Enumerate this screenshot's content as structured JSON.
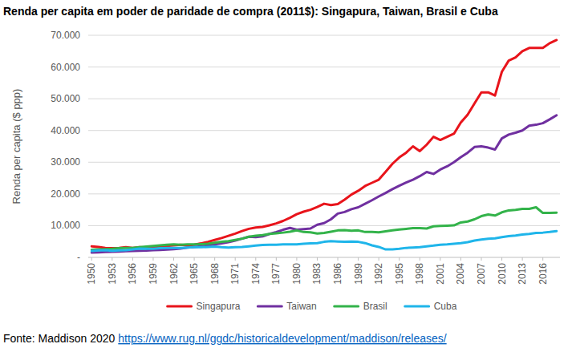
{
  "chart_data": {
    "type": "line",
    "title": "Renda per capita em poder de paridade de compra (2011$): Singapura, Taiwan, Brasil e Cuba",
    "y_label": "Renda per capita ($ ppp)",
    "source": "Fonte: Maddison 2020",
    "source_link": "https://www.rug.nl/ggdc/historicaldevelopment/maddison/releases/",
    "x": [
      1950,
      1951,
      1952,
      1953,
      1954,
      1955,
      1956,
      1957,
      1958,
      1959,
      1960,
      1961,
      1962,
      1963,
      1964,
      1965,
      1966,
      1967,
      1968,
      1969,
      1970,
      1971,
      1972,
      1973,
      1974,
      1975,
      1976,
      1977,
      1978,
      1979,
      1980,
      1981,
      1982,
      1983,
      1984,
      1985,
      1986,
      1987,
      1988,
      1989,
      1990,
      1991,
      1992,
      1993,
      1994,
      1995,
      1996,
      1997,
      1998,
      1999,
      2000,
      2001,
      2002,
      2003,
      2004,
      2005,
      2006,
      2007,
      2008,
      2009,
      2010,
      2011,
      2012,
      2013,
      2014,
      2015,
      2016,
      2017,
      2018
    ],
    "xlim": [
      1949.5,
      2018.5
    ],
    "xticks": [
      1950,
      1953,
      1956,
      1959,
      1962,
      1965,
      1968,
      1971,
      1974,
      1977,
      1980,
      1983,
      1986,
      1989,
      1992,
      1995,
      1998,
      2001,
      2004,
      2007,
      2010,
      2013,
      2016
    ],
    "ylim": [
      0,
      70000
    ],
    "yticks": [
      {
        "value": 0,
        "label": "-"
      },
      {
        "value": 10000,
        "label": "10.000"
      },
      {
        "value": 20000,
        "label": "20.000"
      },
      {
        "value": 30000,
        "label": "30.000"
      },
      {
        "value": 40000,
        "label": "40.000"
      },
      {
        "value": 50000,
        "label": "50.000"
      },
      {
        "value": 60000,
        "label": "60.000"
      },
      {
        "value": 70000,
        "label": "70.000"
      }
    ],
    "grid": true,
    "legend": "bottom",
    "series": [
      {
        "name": "Singapura",
        "color": "#e8141b",
        "values": [
          3500,
          3300,
          3000,
          2900,
          3000,
          3200,
          3000,
          3200,
          3100,
          3200,
          3500,
          3600,
          3800,
          4000,
          3800,
          4000,
          4400,
          4900,
          5500,
          6100,
          6800,
          7500,
          8300,
          9000,
          9400,
          9600,
          10100,
          10700,
          11500,
          12500,
          13600,
          14400,
          15000,
          15900,
          16900,
          16500,
          16800,
          18200,
          19800,
          21000,
          22500,
          23500,
          24500,
          27000,
          29500,
          31500,
          33000,
          35000,
          33500,
          35500,
          38000,
          37000,
          38000,
          39000,
          42500,
          45000,
          48500,
          52000,
          52000,
          51000,
          58500,
          62000,
          63000,
          65000,
          66000,
          66000,
          66000,
          67500,
          68500
        ]
      },
      {
        "name": "Taiwan",
        "color": "#7030a0",
        "values": [
          1500,
          1600,
          1700,
          1800,
          1850,
          1950,
          2000,
          2100,
          2150,
          2250,
          2350,
          2450,
          2600,
          2800,
          3100,
          3300,
          3500,
          3800,
          4100,
          4400,
          4800,
          5300,
          5900,
          6500,
          6400,
          6600,
          7400,
          8000,
          8700,
          9300,
          8700,
          8900,
          9100,
          10300,
          10800,
          12000,
          13800,
          14300,
          15200,
          15800,
          16900,
          18000,
          19200,
          20300,
          21500,
          22600,
          23600,
          24500,
          25600,
          26900,
          26300,
          27700,
          28700,
          30000,
          31600,
          33000,
          34800,
          35000,
          34600,
          34000,
          37500,
          38700,
          39300,
          40000,
          41500,
          41800,
          42300,
          43500,
          44800
        ]
      },
      {
        "name": "Brasil",
        "color": "#33b34a",
        "values": [
          2400,
          2500,
          2600,
          2700,
          2900,
          3000,
          3000,
          3200,
          3400,
          3600,
          3800,
          4000,
          4100,
          4000,
          4100,
          4100,
          4200,
          4300,
          4600,
          4900,
          5100,
          5500,
          5900,
          6500,
          6800,
          7000,
          7400,
          7600,
          7800,
          8100,
          8500,
          8000,
          7900,
          7500,
          7700,
          8100,
          8500,
          8600,
          8400,
          8500,
          8000,
          8000,
          7900,
          8200,
          8500,
          8800,
          9000,
          9200,
          9200,
          9100,
          9800,
          9900,
          10000,
          10100,
          11000,
          11300,
          12000,
          13000,
          13500,
          13200,
          14200,
          14800,
          15000,
          15300,
          15300,
          15800,
          14000,
          14000,
          14100
        ]
      },
      {
        "name": "Cuba",
        "color": "#1fb5ea",
        "values": [
          2000,
          2200,
          2300,
          2100,
          2200,
          2300,
          2500,
          2800,
          2700,
          2700,
          2900,
          3000,
          3000,
          3000,
          3100,
          3200,
          3200,
          3300,
          3400,
          3200,
          3100,
          3200,
          3300,
          3500,
          3700,
          3900,
          4000,
          4000,
          4100,
          4100,
          4100,
          4300,
          4400,
          4500,
          4900,
          5100,
          5000,
          4900,
          5000,
          4900,
          4500,
          3800,
          3300,
          2500,
          2500,
          2700,
          3000,
          3100,
          3200,
          3500,
          3700,
          4000,
          4100,
          4300,
          4500,
          4800,
          5300,
          5600,
          5900,
          6000,
          6400,
          6700,
          6900,
          7200,
          7400,
          7700,
          7800,
          8000,
          8300
        ]
      }
    ]
  }
}
